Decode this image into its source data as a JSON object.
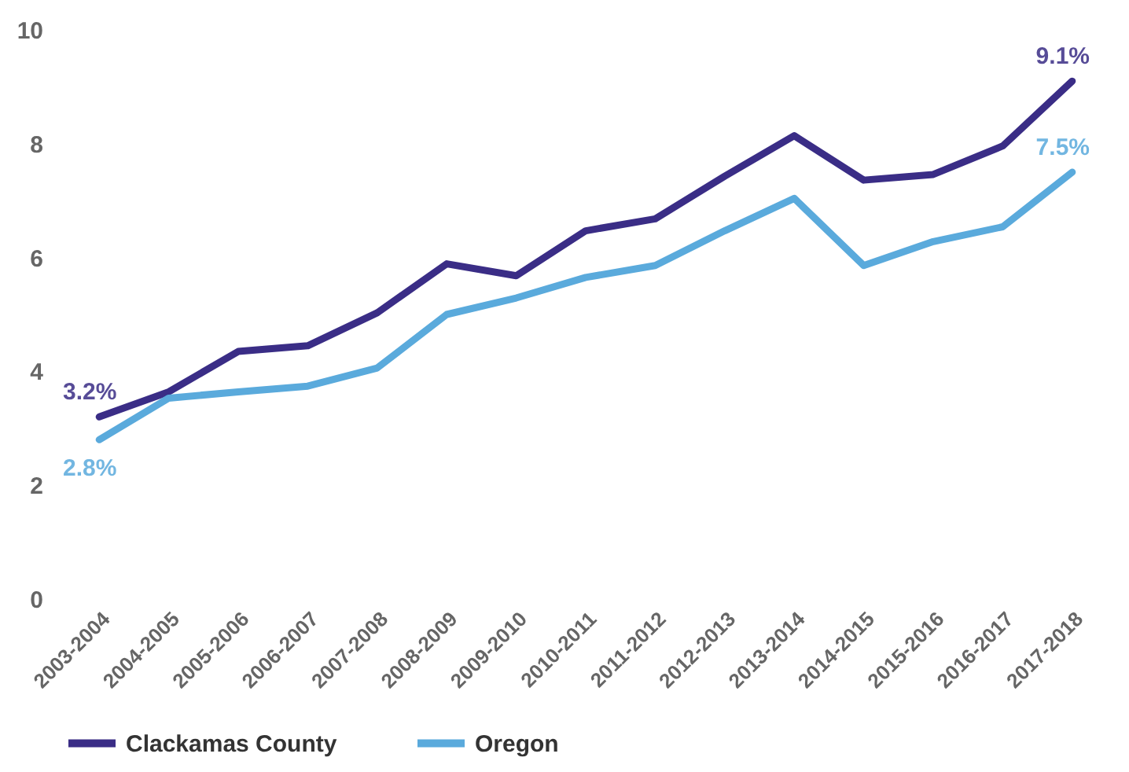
{
  "chart_data": {
    "type": "line",
    "categories": [
      "2003-2004",
      "2004-2005",
      "2005-2006",
      "2006-2007",
      "2007-2008",
      "2008-2009",
      "2009-2010",
      "2010-2011",
      "2011-2012",
      "2012-2013",
      "2013-2014",
      "2014-2015",
      "2015-2016",
      "2016-2017",
      "2017-2018"
    ],
    "series": [
      {
        "name": "Clackamas County",
        "color": "#3a2d86",
        "values": [
          3.2,
          3.64,
          4.35,
          4.45,
          5.03,
          5.89,
          5.68,
          6.47,
          6.68,
          7.43,
          8.14,
          7.36,
          7.46,
          7.96,
          9.1
        ],
        "value_labels": [
          "3.2%",
          null,
          null,
          null,
          null,
          null,
          null,
          null,
          null,
          null,
          null,
          null,
          null,
          null,
          "9.1%"
        ]
      },
      {
        "name": "Oregon",
        "color": "#5aaadc",
        "values": [
          2.8,
          3.53,
          3.64,
          3.74,
          4.06,
          5.0,
          5.29,
          5.65,
          5.86,
          6.47,
          7.04,
          5.86,
          6.28,
          6.54,
          7.5
        ],
        "value_labels": [
          "2.8%",
          null,
          null,
          null,
          null,
          null,
          null,
          null,
          null,
          null,
          null,
          null,
          null,
          null,
          "7.5%"
        ]
      }
    ],
    "ylim": [
      0,
      10
    ],
    "yticks": [
      0,
      2,
      4,
      6,
      8,
      10
    ],
    "grid": false,
    "legend": "bottom",
    "marker": "none",
    "line_style": "solid"
  }
}
